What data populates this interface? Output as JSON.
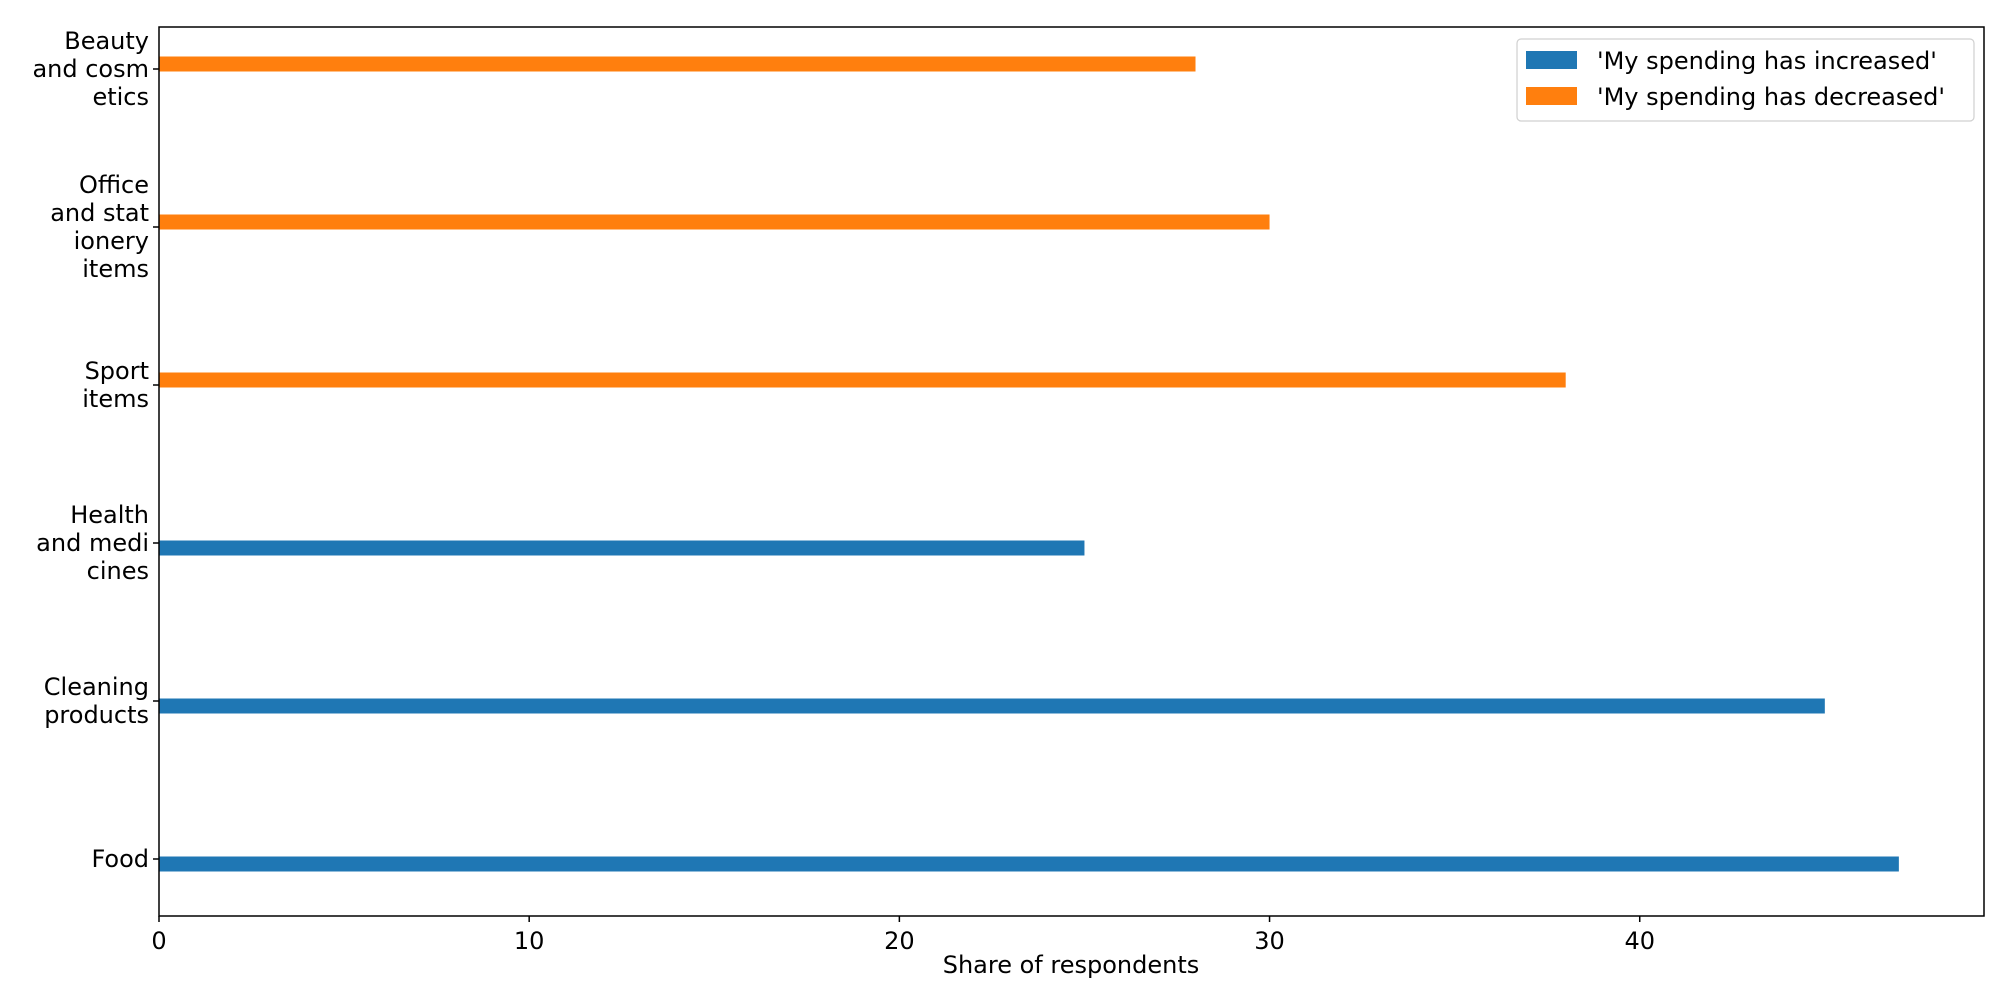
{
  "chart_data": {
    "type": "bar",
    "orientation": "horizontal",
    "title": "",
    "xlabel": "Share of respondents",
    "ylabel": "",
    "xlim": [
      0,
      49.3
    ],
    "xticks": [
      0,
      10,
      20,
      30,
      40
    ],
    "grid": false,
    "legend_position": "top-right",
    "categories": [
      "Food",
      "Cleaning products",
      "Health and medicines",
      "Sport items",
      "Office and stationery items",
      "Beauty and cosmetics"
    ],
    "category_label_lines": [
      [
        "Food"
      ],
      [
        "Cleaning",
        "products"
      ],
      [
        "Health",
        "and medi",
        "cines"
      ],
      [
        "Sport",
        "items"
      ],
      [
        "Office",
        "and stat",
        "ionery",
        "items"
      ],
      [
        "Beauty",
        "and cosm",
        "etics"
      ]
    ],
    "series": [
      {
        "name": "'My spending has increased'",
        "color": "#1f77b4",
        "values": [
          47,
          45,
          25,
          null,
          null,
          null
        ]
      },
      {
        "name": "'My spending has decreased'",
        "color": "#ff7f0e",
        "values": [
          null,
          null,
          null,
          38,
          30,
          28
        ]
      }
    ]
  }
}
